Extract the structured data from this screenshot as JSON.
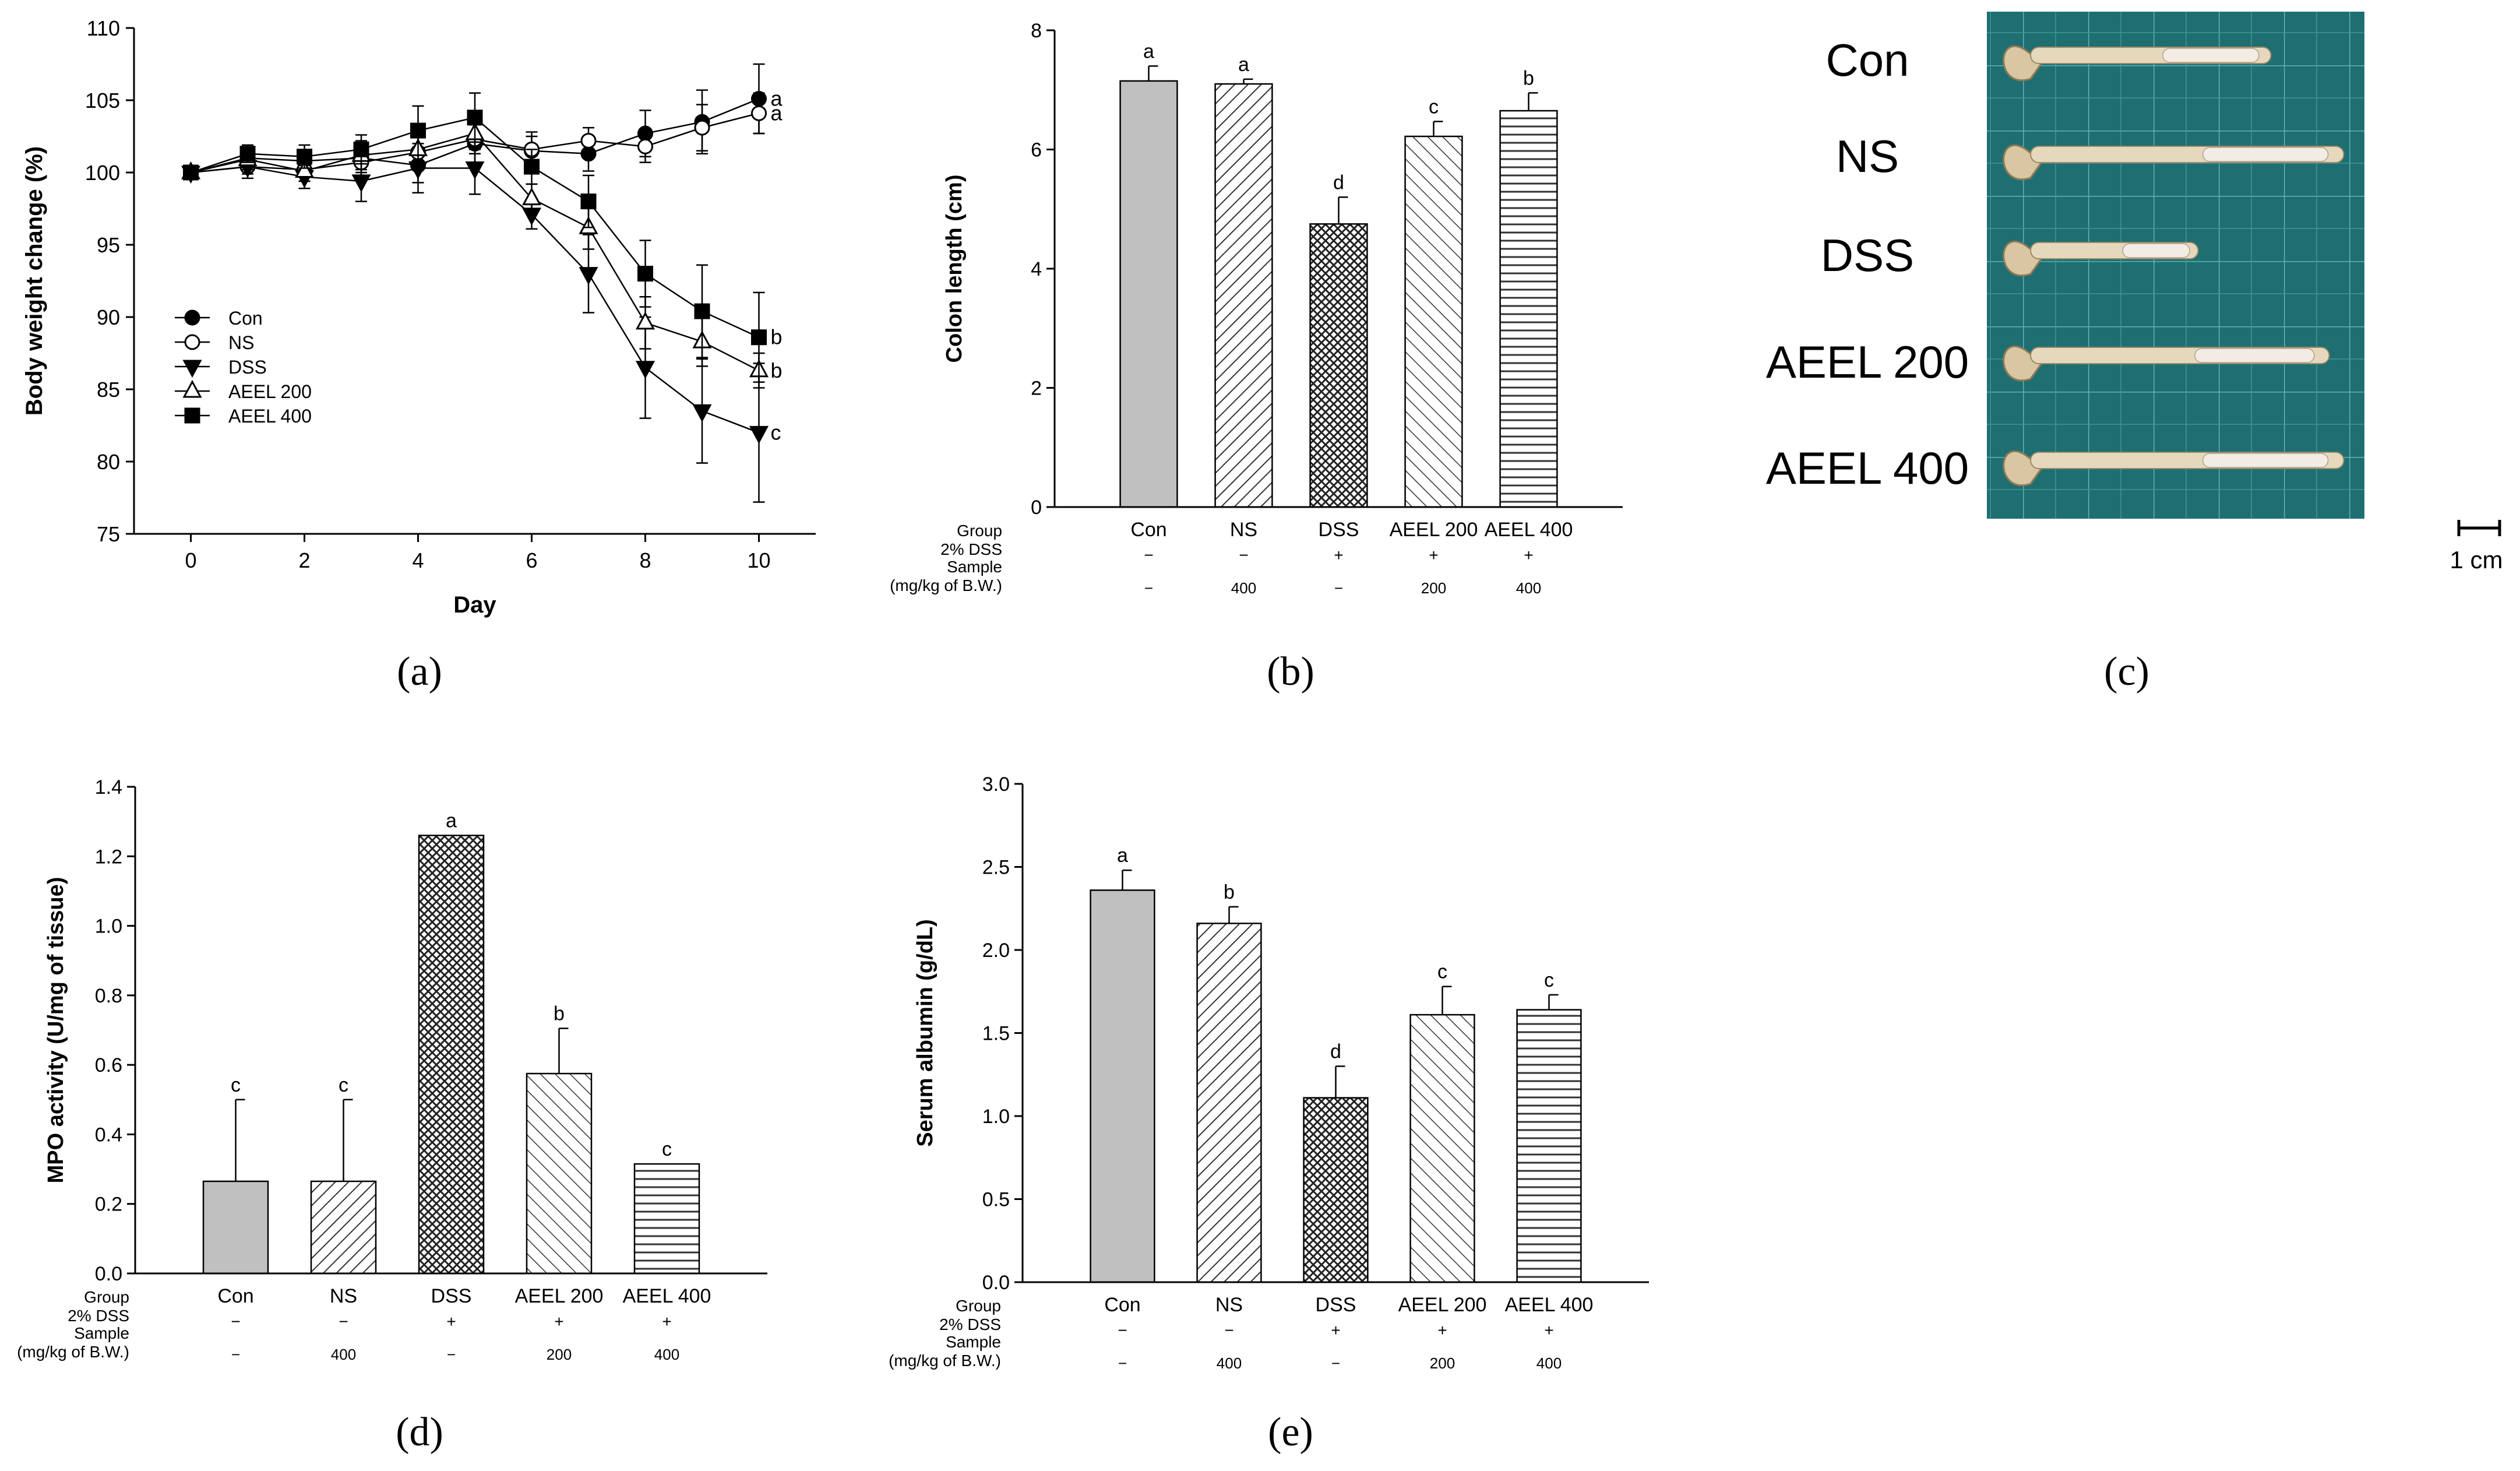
{
  "panel_labels": [
    "(a)",
    "(b)",
    "(c)",
    "(d)",
    "(e)"
  ],
  "palette": {
    "Con": "#c0c0c0",
    "NS": "#c8c8c8",
    "DSS": "#9a9a9a",
    "AEEL 200": "#b4b4b4",
    "AEEL 400": "#cfcfcf",
    "photo_bg": "#1f6f72",
    "grid": "#5fb3b6"
  },
  "chart_data": [
    {
      "panel": "a",
      "type": "line",
      "xlabel": "Day",
      "ylabel": "Body weight change (%)",
      "xlim": [
        -1,
        11
      ],
      "ylim": [
        75,
        110
      ],
      "xticks": [
        0,
        2,
        4,
        6,
        8,
        10
      ],
      "yticks": [
        75,
        80,
        85,
        90,
        95,
        100,
        105,
        110
      ],
      "legend_position": "lower-left",
      "x": [
        0,
        1,
        2,
        3,
        4,
        5,
        6,
        7,
        8,
        9,
        10
      ],
      "series": [
        {
          "name": "Con",
          "marker": "filled-circle",
          "values": [
            100,
            101,
            100.8,
            101,
            100.5,
            102,
            101.5,
            101.3,
            102.7,
            103.5,
            105.1
          ],
          "err": [
            0,
            0.6,
            0.7,
            1.0,
            1.2,
            1.4,
            1.0,
            1.2,
            1.6,
            2.2,
            2.4
          ],
          "sig": "a"
        },
        {
          "name": "NS",
          "marker": "open-circle",
          "values": [
            100,
            100.4,
            100.2,
            100.7,
            101.4,
            102.3,
            101.6,
            102.2,
            101.8,
            103.1,
            104.1
          ],
          "err": [
            0,
            0.5,
            0.8,
            0.9,
            1.1,
            1.0,
            1.2,
            0.9,
            1.1,
            1.6,
            1.4
          ],
          "sig": "a"
        },
        {
          "name": "DSS",
          "marker": "filled-triangle-down",
          "values": [
            100,
            100.4,
            99.7,
            99.4,
            100.3,
            100.3,
            97.1,
            93.0,
            86.5,
            83.5,
            82.0
          ],
          "err": [
            0,
            0.8,
            0.8,
            1.4,
            1.7,
            1.8,
            1.0,
            2.7,
            3.5,
            3.6,
            4.8
          ],
          "sig": "c"
        },
        {
          "name": "AEEL 200",
          "marker": "open-triangle-up",
          "values": [
            100,
            100.9,
            100.1,
            101.2,
            101.6,
            102.7,
            98.2,
            96.2,
            89.6,
            88.3,
            86.3
          ],
          "err": [
            0,
            0.7,
            0.7,
            1.0,
            1.3,
            1.1,
            1.0,
            1.5,
            1.8,
            1.7,
            1.2
          ],
          "sig": "b"
        },
        {
          "name": "AEEL 400",
          "marker": "filled-square",
          "values": [
            100,
            101.3,
            101.1,
            101.6,
            102.9,
            103.8,
            100.4,
            98.0,
            93.0,
            90.4,
            88.6
          ],
          "err": [
            0,
            0.6,
            0.8,
            1.0,
            1.7,
            1.7,
            1.2,
            1.8,
            2.3,
            3.2,
            3.1
          ],
          "sig": "b"
        }
      ]
    },
    {
      "panel": "b",
      "type": "bar",
      "ylabel": "Colon length (cm)",
      "ylim": [
        0,
        8
      ],
      "yticks": [
        0,
        2,
        4,
        6,
        8
      ],
      "categories": [
        "Con",
        "NS",
        "DSS",
        "AEEL 200",
        "AEEL 400"
      ],
      "values": [
        7.15,
        7.1,
        4.75,
        6.22,
        6.65
      ],
      "err": [
        0.25,
        0.08,
        0.45,
        0.25,
        0.3
      ],
      "sig": [
        "a",
        "a",
        "d",
        "c",
        "b"
      ],
      "table_labels": [
        "Group",
        "2% DSS",
        "Sample",
        "(mg/kg of B.W.)"
      ],
      "dss_row": [
        "−",
        "−",
        "+",
        "+",
        "+"
      ],
      "sample_row": [
        "−",
        "400",
        "−",
        "200",
        "400"
      ]
    },
    {
      "panel": "d",
      "type": "bar",
      "ylabel": "MPO activity (U/mg of tissue)",
      "ylim": [
        0,
        1.4
      ],
      "yticks": [
        "0.0",
        "0.2",
        "0.4",
        "0.6",
        "0.8",
        "1.0",
        "1.2",
        "1.4"
      ],
      "categories": [
        "Con",
        "NS",
        "DSS",
        "AEEL 200",
        "AEEL 400"
      ],
      "values": [
        0.265,
        0.265,
        1.26,
        0.575,
        0.315
      ],
      "err": [
        0.235,
        0.235,
        0,
        0.13,
        0
      ],
      "sig": [
        "c",
        "c",
        "a",
        "b",
        "c"
      ],
      "table_labels": [
        "Group",
        "2% DSS",
        "Sample",
        "(mg/kg of B.W.)"
      ],
      "dss_row": [
        "−",
        "−",
        "+",
        "+",
        "+"
      ],
      "sample_row": [
        "−",
        "400",
        "−",
        "200",
        "400"
      ]
    },
    {
      "panel": "e",
      "type": "bar",
      "ylabel": "Serum albumin (g/dL)",
      "ylim": [
        0,
        3.0
      ],
      "yticks": [
        "0.0",
        "0.5",
        "1.0",
        "1.5",
        "2.0",
        "2.5",
        "3.0"
      ],
      "categories": [
        "Con",
        "NS",
        "DSS",
        "AEEL 200",
        "AEEL 400"
      ],
      "values": [
        2.36,
        2.16,
        1.11,
        1.61,
        1.64
      ],
      "err": [
        0.12,
        0.1,
        0.19,
        0.17,
        0.09
      ],
      "sig": [
        "a",
        "b",
        "d",
        "c",
        "c"
      ],
      "table_labels": [
        "Group",
        "2% DSS",
        "Sample",
        "(mg/kg of B.W.)"
      ],
      "dss_row": [
        "−",
        "−",
        "+",
        "+",
        "+"
      ],
      "sample_row": [
        "−",
        "400",
        "−",
        "200",
        "400"
      ]
    }
  ],
  "photo": {
    "labels": [
      "Con",
      "NS",
      "DSS",
      "AEEL 200",
      "AEEL 400"
    ],
    "scale_label": "1 cm",
    "colon_length_fraction": [
      0.66,
      0.86,
      0.46,
      0.82,
      0.86
    ]
  }
}
